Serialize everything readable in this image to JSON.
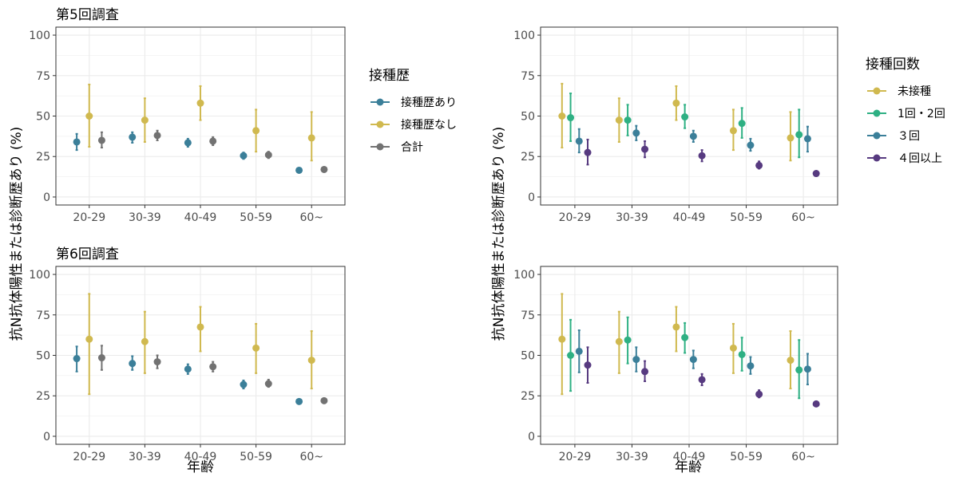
{
  "figure": {
    "ylabel": "抗N抗体陽性または診断歴あり (%)",
    "xlabel": "年齢"
  },
  "chart_data": [
    {
      "id": "tl",
      "type": "scatter",
      "title": "第5回調査",
      "categories": [
        "20-29",
        "30-39",
        "40-49",
        "50-59",
        "60~"
      ],
      "ylim": [
        0,
        100
      ],
      "yticks": [
        0,
        25,
        50,
        75,
        100
      ],
      "grid": true,
      "legend": "right",
      "series": [
        {
          "name": "接種歴あり",
          "color": "#3b7f99",
          "values": [
            34,
            37,
            33.5,
            25.5,
            16.5
          ],
          "low": [
            29,
            33.5,
            31,
            23.5,
            15.5
          ],
          "high": [
            39,
            40,
            36,
            27.5,
            17.5
          ]
        },
        {
          "name": "接種歴なし",
          "color": "#d0b94f",
          "values": [
            50,
            47.5,
            58,
            41,
            36.5
          ],
          "low": [
            31,
            34,
            47.5,
            28,
            22.5
          ],
          "high": [
            69.5,
            61,
            68.5,
            54,
            52.5
          ]
        },
        {
          "name": "合計",
          "color": "#727272",
          "values": [
            35,
            38,
            34.5,
            26,
            17
          ],
          "low": [
            30.5,
            35,
            32,
            24,
            16
          ],
          "high": [
            40,
            41,
            37,
            28,
            18
          ]
        }
      ]
    },
    {
      "id": "tr",
      "type": "scatter",
      "title": "",
      "categories": [
        "20-29",
        "30-39",
        "40-49",
        "50-59",
        "60~"
      ],
      "ylim": [
        0,
        100
      ],
      "yticks": [
        0,
        25,
        50,
        75,
        100
      ],
      "grid": true,
      "legend": "right",
      "series": [
        {
          "name": "未接種",
          "color": "#d0b94f",
          "values": [
            50,
            47.5,
            58,
            41,
            36.5
          ],
          "low": [
            30.5,
            34,
            47.5,
            29,
            22.5
          ],
          "high": [
            70,
            61,
            68.5,
            54,
            52.5
          ]
        },
        {
          "name": "1回・2回",
          "color": "#2eb083",
          "values": [
            49,
            47.5,
            49.5,
            45.5,
            38.5
          ],
          "low": [
            34.5,
            38,
            42.5,
            36.5,
            24.5
          ],
          "high": [
            64,
            57,
            57,
            55,
            54
          ]
        },
        {
          "name": "３回",
          "color": "#3b7f99",
          "values": [
            34.5,
            39.5,
            37.5,
            32,
            36
          ],
          "low": [
            27.5,
            35,
            34,
            28.5,
            28
          ],
          "high": [
            42,
            44,
            41,
            36,
            43.5
          ]
        },
        {
          "name": "４回以上",
          "color": "#573a80",
          "values": [
            27.5,
            29.5,
            25.5,
            19.5,
            14.5
          ],
          "low": [
            20,
            24.5,
            22,
            17.5,
            13.5
          ],
          "high": [
            35.5,
            34.5,
            29,
            22,
            15.5
          ]
        }
      ]
    },
    {
      "id": "bl",
      "type": "scatter",
      "title": "第6回調査",
      "categories": [
        "20-29",
        "30-39",
        "40-49",
        "50-59",
        "60~"
      ],
      "ylim": [
        0,
        100
      ],
      "yticks": [
        0,
        25,
        50,
        75,
        100
      ],
      "grid": true,
      "legend": "none",
      "series": [
        {
          "name": "接種歴あり",
          "color": "#3b7f99",
          "values": [
            48,
            45,
            41.5,
            32,
            21.5
          ],
          "low": [
            40,
            41,
            38.5,
            29.5,
            20.5
          ],
          "high": [
            55.5,
            49.5,
            44.5,
            34.5,
            22.5
          ]
        },
        {
          "name": "接種歴なし",
          "color": "#d0b94f",
          "values": [
            60,
            58.5,
            67.5,
            54.5,
            47
          ],
          "low": [
            26,
            39,
            52.5,
            39,
            29.5
          ],
          "high": [
            88,
            77,
            80,
            69.5,
            65
          ]
        },
        {
          "name": "合計",
          "color": "#727272",
          "values": [
            48.5,
            46,
            43,
            32.5,
            22
          ],
          "low": [
            41,
            42,
            40,
            30.5,
            21
          ],
          "high": [
            56,
            50,
            46,
            35,
            23
          ]
        }
      ]
    },
    {
      "id": "br",
      "type": "scatter",
      "title": "",
      "categories": [
        "20-29",
        "30-39",
        "40-49",
        "50-59",
        "60~"
      ],
      "ylim": [
        0,
        100
      ],
      "yticks": [
        0,
        25,
        50,
        75,
        100
      ],
      "grid": true,
      "legend": "none",
      "series": [
        {
          "name": "未接種",
          "color": "#d0b94f",
          "values": [
            60,
            58.5,
            67.5,
            54.5,
            47
          ],
          "low": [
            26,
            39,
            52.5,
            39,
            29.5
          ],
          "high": [
            88,
            77,
            80,
            69.5,
            65
          ]
        },
        {
          "name": "1回・2回",
          "color": "#2eb083",
          "values": [
            50,
            59.5,
            61,
            50.5,
            41
          ],
          "low": [
            28,
            45,
            51.5,
            40.5,
            23.5
          ],
          "high": [
            72,
            73.5,
            70,
            61,
            59.5
          ]
        },
        {
          "name": "３回",
          "color": "#3b7f99",
          "values": [
            52.5,
            47.5,
            47.5,
            43.5,
            41.5
          ],
          "low": [
            39.5,
            40,
            42,
            38.5,
            32
          ],
          "high": [
            65.5,
            55,
            53,
            49,
            51
          ]
        },
        {
          "name": "４回以上",
          "color": "#573a80",
          "values": [
            44,
            40,
            35,
            26,
            20
          ],
          "low": [
            33,
            34,
            31.5,
            24,
            18.5
          ],
          "high": [
            55,
            46.5,
            38.5,
            28.5,
            21.5
          ]
        }
      ]
    }
  ]
}
